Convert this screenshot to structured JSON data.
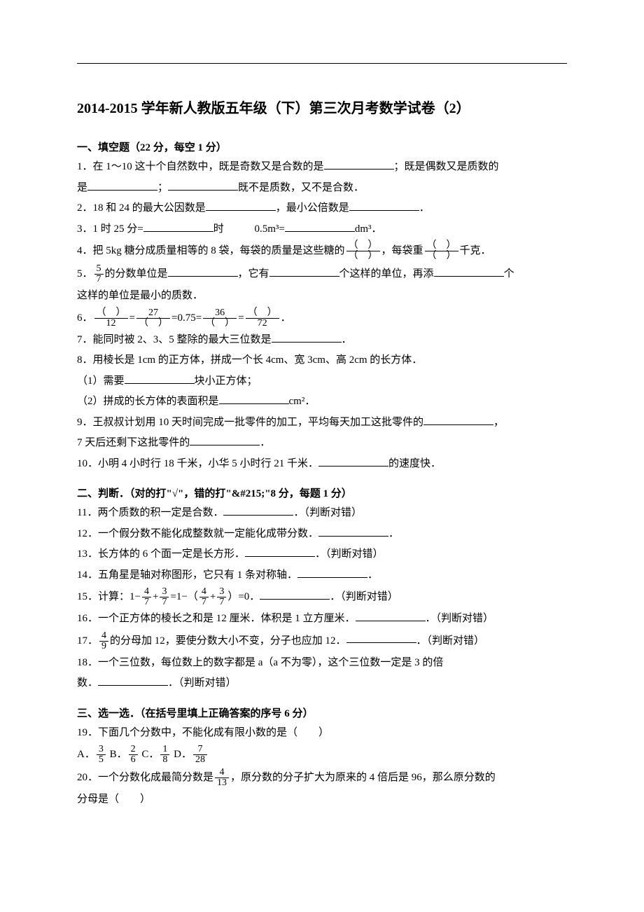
{
  "title": "2014-2015 学年新人教版五年级（下）第三次月考数学试卷（2）",
  "sec1": {
    "heading": "一、填空题（22 分，每空 1 分）",
    "q1a": "1．在 1～10 这十个自然数中，既是奇数又是合数的是",
    "q1b": "；既是偶数又是质数的",
    "q1c": "是",
    "q1d": "；",
    "q1e": "既不是质数，又不是合数．",
    "q2a": "2．18 和 24 的最大公因数是",
    "q2b": "，最小公倍数是",
    "q2c": "．",
    "q3a": "3．1 时 25 分=",
    "q3b": "时",
    "q3c": "0.5m³=",
    "q3d": "dm³．",
    "q4a": "4．把 5kg 糖分成质量相等的 8 袋，每袋的质量是这些糖的",
    "q4b": "，每袋重",
    "q4c": "千克．",
    "q5a": "5．",
    "q5b": "的分数单位是",
    "q5c": "，它有",
    "q5d": "个这样的单位，再添",
    "q5e": "个",
    "q5f": "这样的单位是最小的质数．",
    "q6a": "6．",
    "q6b": "=",
    "q6c": "=0.75=",
    "q6d": "=",
    "q6e": "．",
    "q7a": "7．能同时被 2、3、5 整除的最大三位数是",
    "q7b": "．",
    "q8": "8．用棱长是 1cm 的正方体，拼成一个长 4cm、宽 3cm、高 2cm 的长方体．",
    "q8_1a": "（1）需要",
    "q8_1b": "块小正方体；",
    "q8_2a": "（2）拼成的长方体的表面积是",
    "q8_2b": "cm²．",
    "q9a": "9．王叔叔计划用 10 天时间完成一批零件的加工，平均每天加工这批零件的",
    "q9b": "，",
    "q9c": "7 天后还剩下这批零件的",
    "q9d": "．",
    "q10a": "10．小明 4 小时行 18 千米，小华 5 小时行 21 千米．",
    "q10b": "的速度快．"
  },
  "sec2": {
    "heading": "二、判断．（对的打\"√\"，错的打\"&#215;\"8 分，每题 1 分）",
    "q11a": "11．两个质数的积一定是合数．",
    "q11b": "．（判断对错）",
    "q12a": "12．一个假分数不能化成整数就一定能化成带分数．",
    "q12b": "．",
    "q13a": "13．长方体的 6 个面一定是长方形．",
    "q13b": "．（判断对错）",
    "q14a": "14．五角星是轴对称图形，它只有 1 条对称轴．",
    "q14b": "．",
    "q15a": "15．计算：1−",
    "q15b": "+",
    "q15c": "=1−（",
    "q15d": "+",
    "q15e": "）=0．",
    "q15f": "．（判断对错）",
    "q16a": "16．一个正方体的棱长之和是 12 厘米．体积是 1 立方厘米．",
    "q16b": "．（判断对错）",
    "q17a": "17．",
    "q17b": "的分母加 12，要使分数大小不变，分子也应加 12．",
    "q17c": "．（判断对错）",
    "q18a": "18．一个三位数，每位数上的数字都是 a（a 不为零），这个三位数一定是 3 的倍",
    "q18b": "数．",
    "q18c": "．（判断对错）"
  },
  "sec3": {
    "heading": "三、选一选．（在括号里填上正确答案的序号 6 分）",
    "q19": "19．下面几个分数中，不能化成有限小数的是（　　）",
    "q19opt_a": "A．",
    "q19opt_b": " B．",
    "q19opt_c": " C．",
    "q19opt_d": " D．",
    "q20a": "20．一个分数化成最简分数是",
    "q20b": "，原分数的分子扩大为原来的 4 倍后是 96，那么原分数的",
    "q20c": "分母是（　　）"
  },
  "frac": {
    "paren": "（　）",
    "n5": "5",
    "n7": "7",
    "n27": "27",
    "n12": "12",
    "n36": "36",
    "n72": "72",
    "n4": "4",
    "n3": "3",
    "n9": "9",
    "n2": "2",
    "n6": "6",
    "n1": "1",
    "n8": "8",
    "n28": "28",
    "n13": "13"
  }
}
